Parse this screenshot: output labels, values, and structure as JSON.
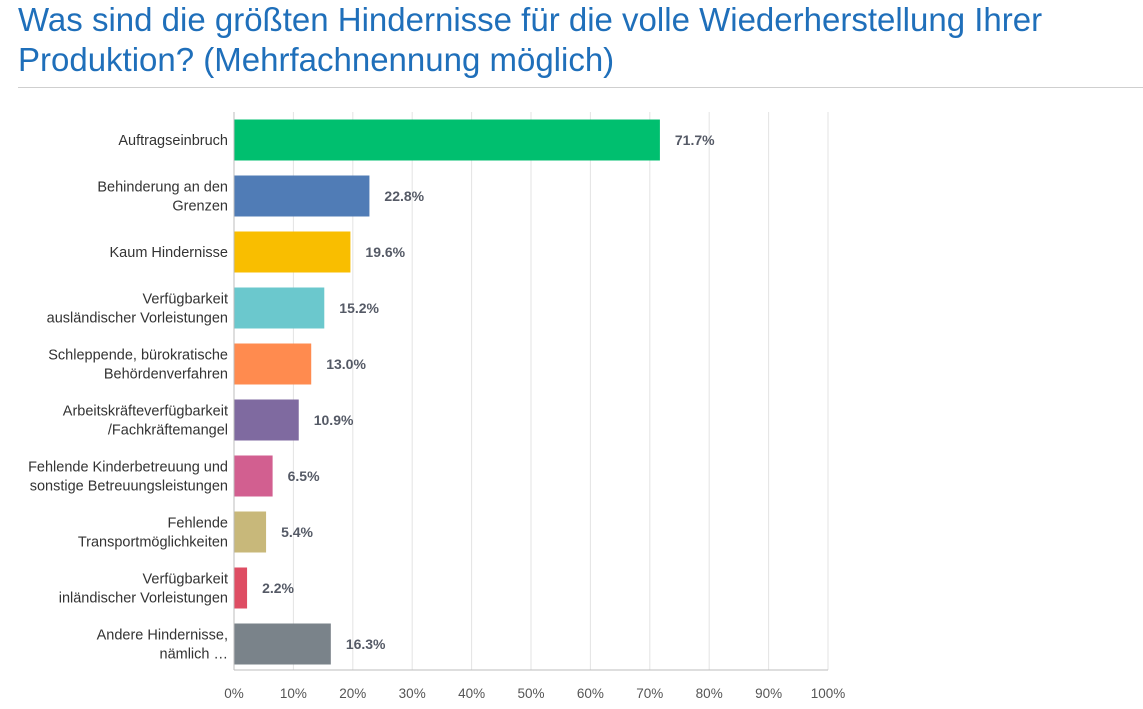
{
  "title": {
    "line1": "Was sind die größten Hindernisse für die volle Wiederherstellung Ihrer",
    "line2": "Produktion? (Mehrfachnennung möglich)"
  },
  "chart_data": {
    "type": "bar",
    "orientation": "horizontal",
    "title": "Was sind die größten Hindernisse für die volle Wiederherstellung Ihrer Produktion? (Mehrfachnennung möglich)",
    "categories": [
      [
        "Auftragseinbruch"
      ],
      [
        "Behinderung an den",
        "Grenzen"
      ],
      [
        "Kaum Hindernisse"
      ],
      [
        "Verfügbarkeit",
        "ausländischer Vorleistungen"
      ],
      [
        "Schleppende, bürokratische",
        "Behördenverfahren"
      ],
      [
        "Arbeitskräfteverfügbarkeit",
        "/Fachkräftemangel"
      ],
      [
        "Fehlende Kinderbetreuung und",
        "sonstige Betreuungsleistungen"
      ],
      [
        "Fehlende",
        "Transportmöglichkeiten"
      ],
      [
        "Verfügbarkeit",
        "inländischer Vorleistungen"
      ],
      [
        "Andere Hindernisse,",
        "nämlich …"
      ]
    ],
    "values": [
      71.7,
      22.8,
      19.6,
      15.2,
      13.0,
      10.9,
      6.5,
      5.4,
      2.2,
      16.3
    ],
    "value_labels": [
      "71.7%",
      "22.8%",
      "19.6%",
      "15.2%",
      "13.0%",
      "10.9%",
      "6.5%",
      "5.4%",
      "2.2%",
      "16.3%"
    ],
    "colors": [
      "#00bf6f",
      "#507cb6",
      "#f9be00",
      "#6bc8cd",
      "#ff8b4f",
      "#7f6aa0",
      "#d25f90",
      "#c8b87a",
      "#de4d63",
      "#7a838a"
    ],
    "xlim": [
      0,
      100
    ],
    "xticks": [
      "0%",
      "10%",
      "20%",
      "30%",
      "40%",
      "50%",
      "60%",
      "70%",
      "80%",
      "90%",
      "100%"
    ],
    "grid": true,
    "xlabel": "",
    "ylabel": ""
  }
}
